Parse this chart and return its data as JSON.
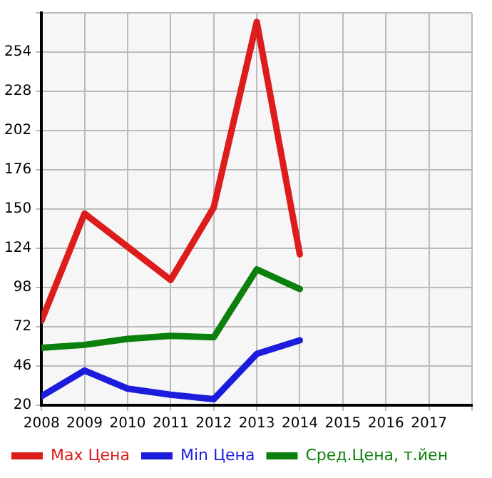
{
  "chart_data": {
    "type": "line",
    "x": [
      2008,
      2009,
      2010,
      2011,
      2012,
      2013,
      2014
    ],
    "series": [
      {
        "name": "Max Цена",
        "color": "#dd1c1c",
        "values": [
          76,
          147,
          125,
          103,
          151,
          274,
          120
        ]
      },
      {
        "name": "Min Цена",
        "color": "#1c1cdd",
        "values": [
          26,
          43,
          31,
          27,
          24,
          54,
          63
        ]
      },
      {
        "name": "Сред.Цена, т.йен",
        "color": "#0c800c",
        "values": [
          58,
          60,
          64,
          66,
          65,
          110,
          97
        ]
      }
    ],
    "xlim": [
      2008,
      2018
    ],
    "xticks": [
      2008,
      2009,
      2010,
      2011,
      2012,
      2013,
      2014,
      2015,
      2016,
      2017,
      {
        "value": 2018,
        "label": null
      }
    ],
    "ylim": [
      20,
      280
    ],
    "yticks": [
      20,
      46,
      72,
      98,
      124,
      150,
      176,
      202,
      228,
      254,
      {
        "value": 280,
        "label": null
      }
    ],
    "grid": true,
    "legend": "bottom",
    "marker": "none",
    "line_style": "solid"
  }
}
